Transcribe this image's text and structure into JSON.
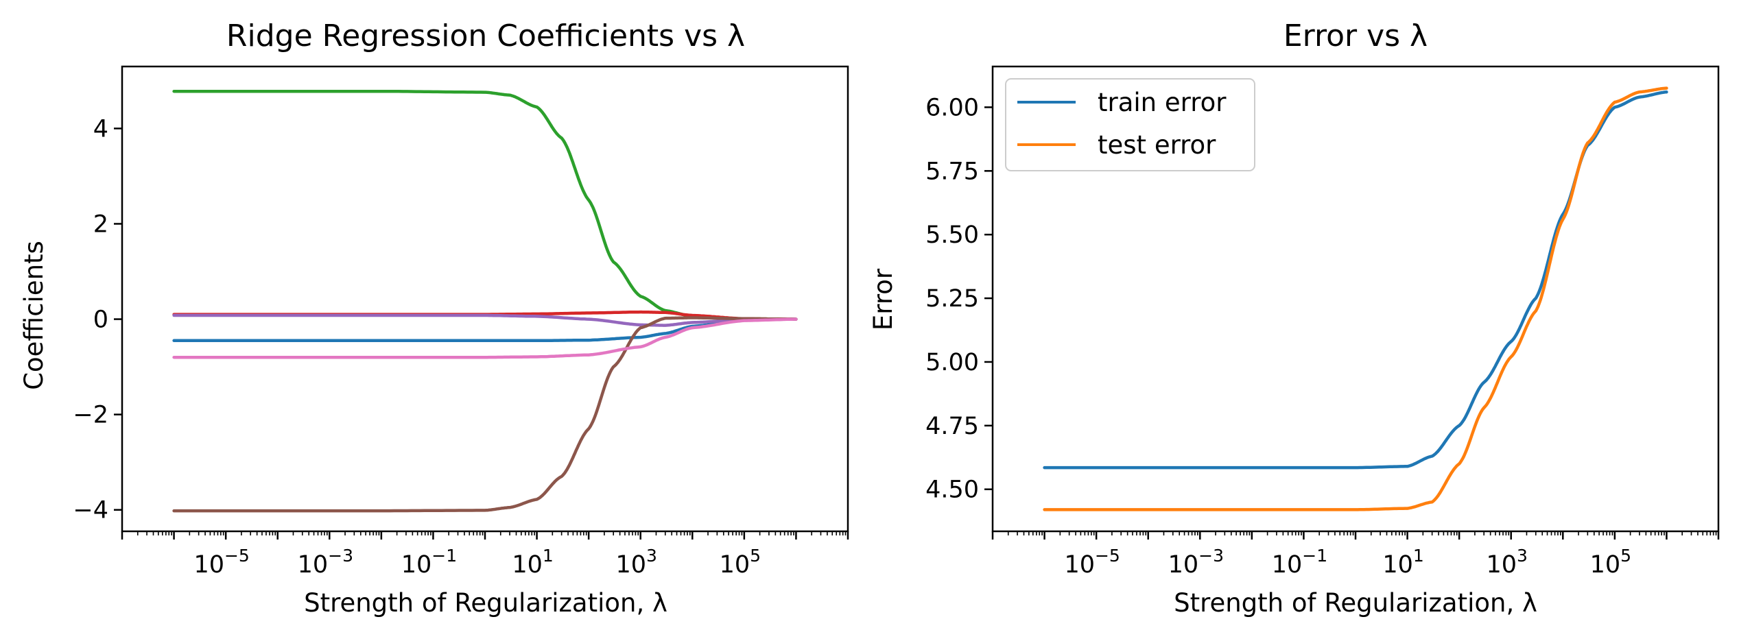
{
  "chart_data": [
    {
      "type": "line",
      "title": "Ridge Regression Coefficients vs λ",
      "xlabel": "Strength of Regularization, λ",
      "ylabel": "Coefficients",
      "xscale": "log",
      "xlim": [
        1e-07,
        10000000.0
      ],
      "ylim": [
        -4.45,
        5.3
      ],
      "xticks": [
        {
          "exp": -5,
          "label": "10^-5"
        },
        {
          "exp": -3,
          "label": "10^-3"
        },
        {
          "exp": -1,
          "label": "10^-1"
        },
        {
          "exp": 1,
          "label": "10^1"
        },
        {
          "exp": 3,
          "label": "10^3"
        },
        {
          "exp": 5,
          "label": "10^5"
        }
      ],
      "yticks": [
        {
          "value": 4,
          "label": "4"
        },
        {
          "value": 2,
          "label": "2"
        },
        {
          "value": 0,
          "label": "0"
        },
        {
          "value": -2,
          "label": "−2"
        },
        {
          "value": -4,
          "label": "−4"
        }
      ],
      "grid": false,
      "series": [
        {
          "color": "#1f77b4",
          "x": [
            1e-06,
            0.0001,
            0.01,
            1,
            10,
            100,
            1000,
            3000,
            10000,
            100000,
            1000000
          ],
          "y": [
            -0.45,
            -0.45,
            -0.45,
            -0.45,
            -0.45,
            -0.44,
            -0.38,
            -0.3,
            -0.15,
            -0.02,
            0
          ]
        },
        {
          "color": "#2ca02c",
          "x": [
            1e-06,
            0.0001,
            0.01,
            1,
            3,
            10,
            30,
            100,
            300,
            1000,
            3000,
            10000,
            100000,
            1000000
          ],
          "y": [
            4.78,
            4.78,
            4.78,
            4.76,
            4.7,
            4.45,
            3.8,
            2.5,
            1.2,
            0.48,
            0.18,
            0.06,
            0.01,
            0
          ]
        },
        {
          "color": "#d62728",
          "x": [
            1e-06,
            0.0001,
            0.01,
            1,
            10,
            100,
            1000,
            3000,
            10000,
            100000,
            1000000
          ],
          "y": [
            0.1,
            0.1,
            0.1,
            0.1,
            0.11,
            0.13,
            0.15,
            0.14,
            0.08,
            0.01,
            0
          ]
        },
        {
          "color": "#9467bd",
          "x": [
            1e-06,
            0.0001,
            0.01,
            1,
            10,
            100,
            1000,
            3000,
            10000,
            100000,
            1000000
          ],
          "y": [
            0.08,
            0.08,
            0.08,
            0.08,
            0.06,
            0.0,
            -0.12,
            -0.13,
            -0.07,
            -0.01,
            0
          ]
        },
        {
          "color": "#8c564b",
          "x": [
            1e-06,
            0.0001,
            0.01,
            1,
            3,
            10,
            30,
            100,
            300,
            1000,
            3000,
            10000,
            100000,
            1000000
          ],
          "y": [
            -4.02,
            -4.02,
            -4.02,
            -4.01,
            -3.95,
            -3.78,
            -3.3,
            -2.3,
            -1.0,
            -0.18,
            0.02,
            0.03,
            0.01,
            0
          ]
        },
        {
          "color": "#e377c2",
          "x": [
            1e-06,
            0.0001,
            0.01,
            1,
            10,
            100,
            1000,
            3000,
            10000,
            100000,
            1000000
          ],
          "y": [
            -0.8,
            -0.8,
            -0.8,
            -0.8,
            -0.79,
            -0.75,
            -0.58,
            -0.38,
            -0.18,
            -0.03,
            0
          ]
        }
      ]
    },
    {
      "type": "line",
      "title": "Error vs λ",
      "xlabel": "Strength of Regularization, λ",
      "ylabel": "Error",
      "xscale": "log",
      "xlim": [
        1e-07,
        10000000.0
      ],
      "ylim": [
        4.335,
        6.16
      ],
      "xticks": [
        {
          "exp": -5,
          "label": "10^-5"
        },
        {
          "exp": -3,
          "label": "10^-3"
        },
        {
          "exp": -1,
          "label": "10^-1"
        },
        {
          "exp": 1,
          "label": "10^1"
        },
        {
          "exp": 3,
          "label": "10^3"
        },
        {
          "exp": 5,
          "label": "10^5"
        }
      ],
      "yticks": [
        {
          "value": 6.0,
          "label": "6.00"
        },
        {
          "value": 5.75,
          "label": "5.75"
        },
        {
          "value": 5.5,
          "label": "5.50"
        },
        {
          "value": 5.25,
          "label": "5.25"
        },
        {
          "value": 5.0,
          "label": "5.00"
        },
        {
          "value": 4.75,
          "label": "4.75"
        },
        {
          "value": 4.5,
          "label": "4.50"
        }
      ],
      "grid": false,
      "legend": "upper-left",
      "series": [
        {
          "name": "train error",
          "color": "#1f77b4",
          "x": [
            1e-06,
            0.001,
            1,
            10,
            30,
            100,
            300,
            1000,
            3000,
            10000,
            30000,
            100000,
            300000,
            1000000
          ],
          "y": [
            4.585,
            4.585,
            4.585,
            4.59,
            4.63,
            4.75,
            4.92,
            5.08,
            5.25,
            5.58,
            5.85,
            6.0,
            6.04,
            6.06
          ]
        },
        {
          "name": "test error",
          "color": "#ff7f0e",
          "x": [
            1e-06,
            0.001,
            1,
            10,
            30,
            100,
            300,
            1000,
            3000,
            10000,
            30000,
            100000,
            300000,
            1000000
          ],
          "y": [
            4.42,
            4.42,
            4.42,
            4.425,
            4.45,
            4.6,
            4.82,
            5.02,
            5.2,
            5.56,
            5.86,
            6.02,
            6.06,
            6.075
          ]
        }
      ]
    }
  ]
}
